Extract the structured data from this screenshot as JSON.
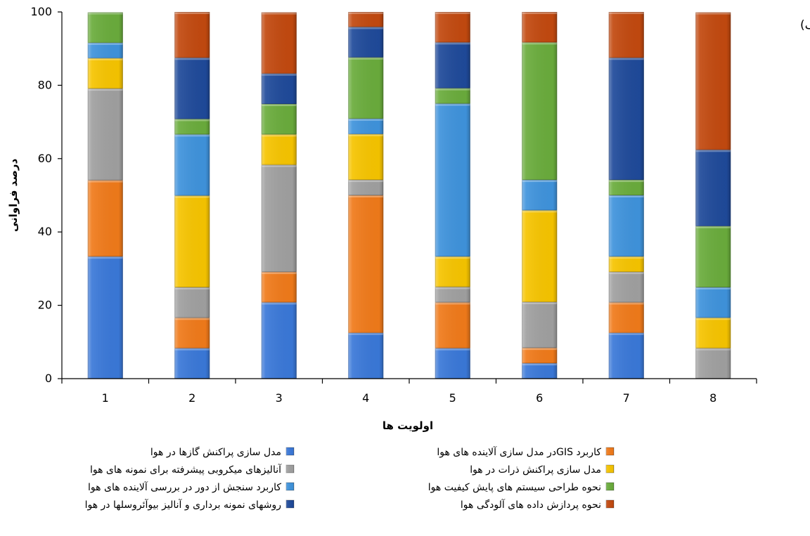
{
  "chart_data": {
    "type": "bar",
    "stacked": true,
    "panel_label": "(الف)",
    "xlabel": "اولویت ها",
    "ylabel": "درصد فراوانی",
    "ylim": [
      0,
      100
    ],
    "yticks": [
      0,
      20,
      40,
      60,
      80,
      100
    ],
    "categories": [
      "1",
      "2",
      "3",
      "4",
      "5",
      "6",
      "7",
      "8"
    ],
    "grid": false,
    "legend_position": "bottom",
    "series": [
      {
        "name": "مدل سازی پراکنش گازها در هوا",
        "color": "#3a78d8",
        "values": [
          33.3,
          8.3,
          20.8,
          12.5,
          8.3,
          4.2,
          12.5,
          0
        ]
      },
      {
        "name": "کاربرد GISدر مدل سازی آلاینده های هوا",
        "color": "#f07a1a",
        "values": [
          20.8,
          8.3,
          8.3,
          37.5,
          12.5,
          4.2,
          8.3,
          0
        ]
      },
      {
        "name": "آنالیزهای میکروبی پیشرفته برای نمونه های هوا",
        "color": "#a0a0a0",
        "values": [
          25.0,
          8.3,
          29.2,
          4.2,
          4.2,
          12.5,
          8.3,
          8.3
        ]
      },
      {
        "name": "مدل سازی پراکنش ذرات در هوا",
        "color": "#f6c400",
        "values": [
          8.3,
          25.0,
          8.3,
          12.5,
          8.3,
          25.0,
          4.2,
          8.3
        ]
      },
      {
        "name": "کاربرد سنجش از دور در بررسی آلاینده های هوا",
        "color": "#3f93dc",
        "values": [
          4.2,
          16.7,
          0,
          4.2,
          41.7,
          8.3,
          16.7,
          8.3
        ]
      },
      {
        "name": "نحوه طراحی سیستم های پایش کیفیت هوا",
        "color": "#6aac3c",
        "values": [
          8.3,
          4.2,
          8.3,
          16.7,
          4.2,
          37.5,
          4.2,
          16.7
        ]
      },
      {
        "name": "روشهای نمونه برداری و آنالیز بیوآئروسلها در هوا",
        "color": "#1f4a9a",
        "values": [
          0,
          16.7,
          8.3,
          8.3,
          12.5,
          0,
          33.3,
          20.8
        ]
      },
      {
        "name": "نحوه پردازش داده های آلودگی هوا",
        "color": "#c2490f",
        "values": [
          0,
          12.5,
          16.7,
          4.2,
          8.3,
          8.3,
          12.5,
          37.5
        ]
      }
    ]
  }
}
